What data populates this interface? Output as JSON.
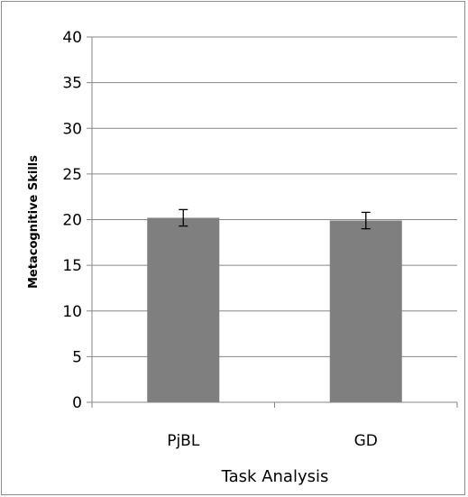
{
  "chart_data": {
    "type": "bar",
    "title": "",
    "xlabel": "Task Analysis",
    "ylabel": "Metacognitive Skills",
    "categories": [
      "PjBL",
      "GD"
    ],
    "values": [
      20.2,
      19.9
    ],
    "error": [
      0.9,
      0.9
    ],
    "ylim": [
      0,
      40
    ],
    "yticks": [
      0,
      5,
      10,
      15,
      20,
      25,
      30,
      35,
      40
    ],
    "ytick_labels": [
      "0",
      "5",
      "10",
      "15",
      "20",
      "25",
      "30",
      "35",
      "40"
    ],
    "grid": true,
    "legend": "none",
    "bar_color": "#7f7f7f",
    "grid_color": "#868686"
  }
}
